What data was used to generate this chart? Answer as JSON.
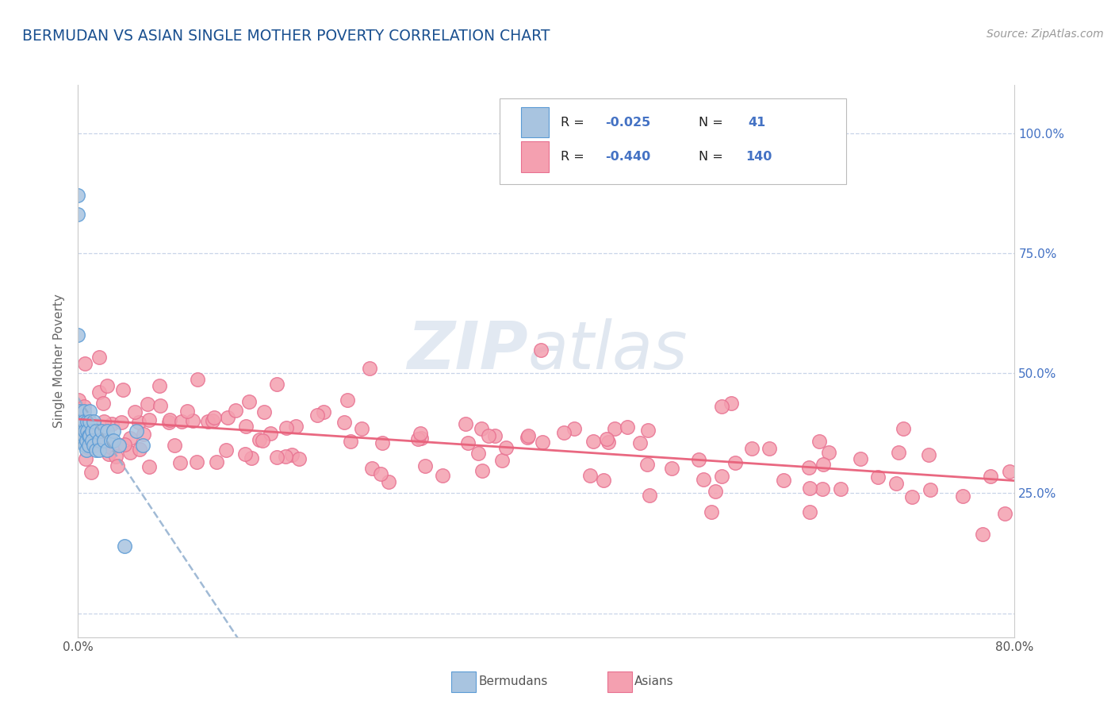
{
  "title": "BERMUDAN VS ASIAN SINGLE MOTHER POVERTY CORRELATION CHART",
  "source": "Source: ZipAtlas.com",
  "ylabel": "Single Mother Poverty",
  "xlim": [
    0.0,
    0.8
  ],
  "ylim": [
    -0.05,
    1.1
  ],
  "bermudan_color": "#a8c4e0",
  "asian_color": "#f4a0b0",
  "bermudan_edge": "#5b9bd5",
  "asian_edge": "#e87090",
  "trendline_bermudan": "#90aece",
  "trendline_asian": "#e8607a",
  "background_color": "#ffffff",
  "grid_color": "#c8d4e8",
  "title_color": "#1a5090",
  "right_tick_color": "#4472c4",
  "axis_color": "#cccccc",
  "watermark_zip_color": "#c0d0e4",
  "watermark_atlas_color": "#b0c0d8"
}
